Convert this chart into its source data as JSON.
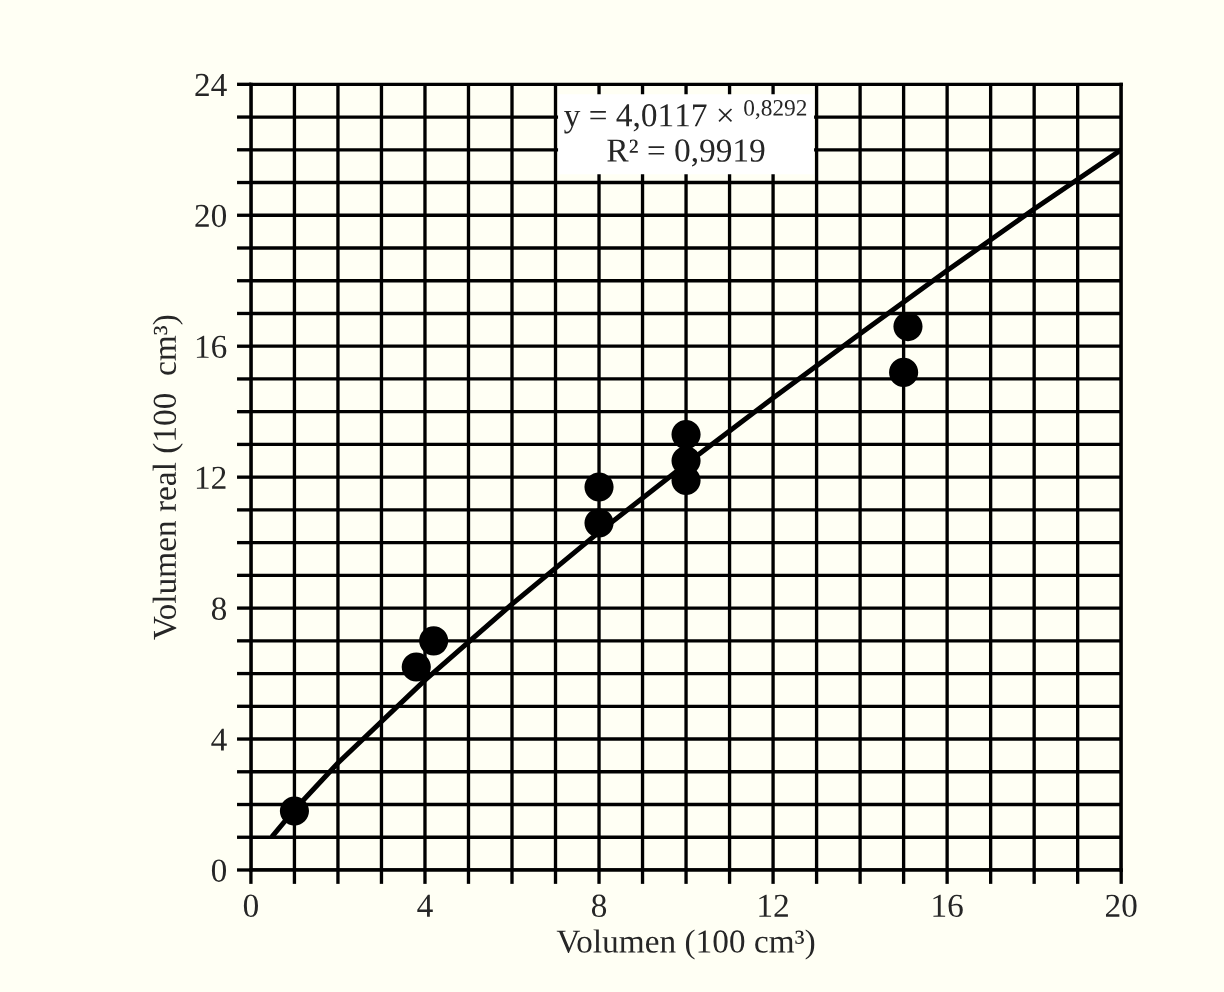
{
  "chart_data": {
    "type": "scatter",
    "xlabel": "Volumen (100 cm³)",
    "ylabel": "Volumen real (100  cm³)",
    "xlim": [
      0,
      20
    ],
    "ylim": [
      0,
      24
    ],
    "xticks": [
      0,
      4,
      8,
      12,
      16,
      20
    ],
    "yticks": [
      0,
      4,
      8,
      12,
      16,
      20,
      24
    ],
    "grid": true,
    "marker": "circle",
    "series": [
      {
        "color": "#000000",
        "x": [
          1,
          3.8,
          4.2,
          8,
          8,
          10,
          10,
          10,
          15,
          15.1
        ],
        "values": [
          1.8,
          6.2,
          7.0,
          11.7,
          10.6,
          13.3,
          12.5,
          11.9,
          15.2,
          16.6
        ]
      },
      {
        "type": "line",
        "color": "#000000",
        "marker": "none",
        "line_style": "solid",
        "x": [
          0.5,
          1,
          2,
          4,
          6,
          8,
          10,
          12,
          14,
          16,
          18,
          20
        ],
        "values": [
          1.04,
          1.84,
          3.27,
          5.8,
          8.12,
          10.32,
          12.4,
          14.42,
          16.38,
          18.31,
          20.19,
          22.0
        ]
      }
    ],
    "annotations": [
      "y = 4,0117 × $^{0,8292}$\nR² = 0,9919"
    ]
  }
}
